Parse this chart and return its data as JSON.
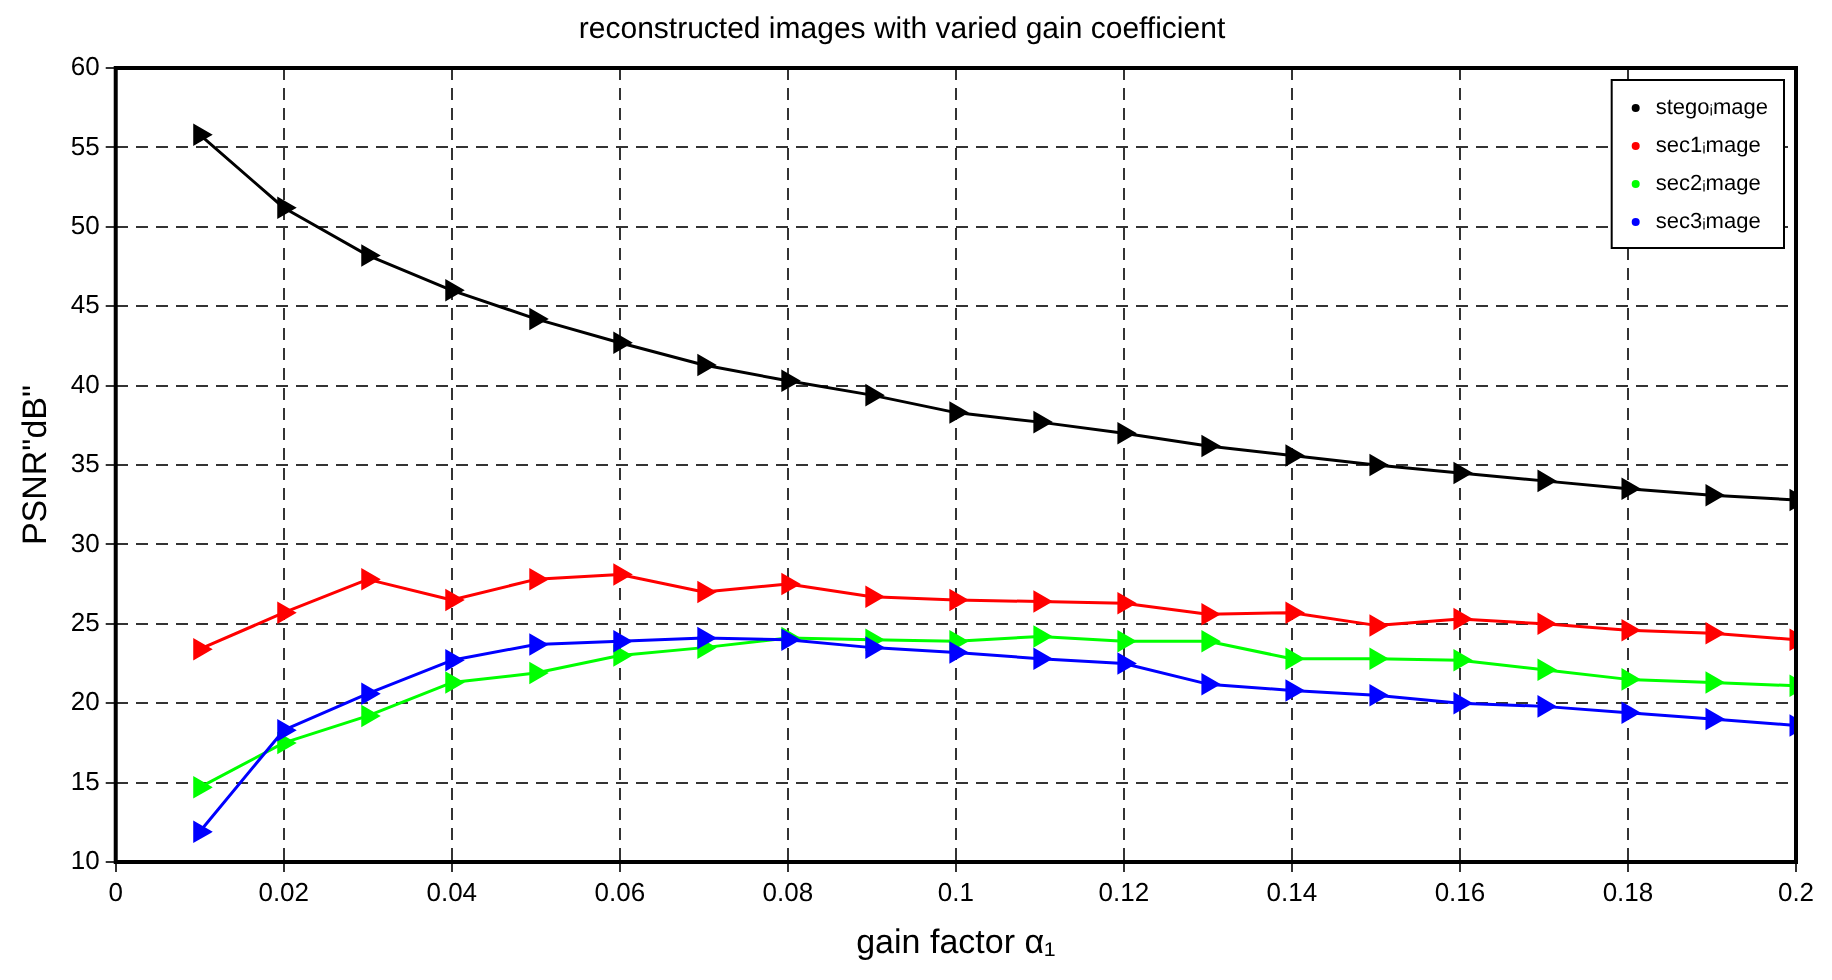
{
  "chart_data": {
    "type": "line",
    "title": "reconstructed images with varied gain coefficient",
    "xlabel": "gain factor α₁",
    "ylabel": "PSNR\"dB\"",
    "x": [
      0.01,
      0.02,
      0.03,
      0.04,
      0.05,
      0.06,
      0.07,
      0.08,
      0.09,
      0.1,
      0.11,
      0.12,
      0.13,
      0.14,
      0.15,
      0.16,
      0.17,
      0.18,
      0.19,
      0.2
    ],
    "series": [
      {
        "name": "stegoᵢmage",
        "color": "#000000",
        "values": [
          55.8,
          51.2,
          48.2,
          46.0,
          44.2,
          42.7,
          41.3,
          40.3,
          39.4,
          38.3,
          37.7,
          37.0,
          36.2,
          35.6,
          35.0,
          34.5,
          34.0,
          33.5,
          33.1,
          32.8
        ]
      },
      {
        "name": "sec1ᵢmage",
        "color": "#ff0000",
        "values": [
          23.4,
          25.7,
          27.8,
          26.5,
          27.8,
          28.1,
          27.0,
          27.5,
          26.7,
          26.5,
          26.4,
          26.3,
          25.6,
          25.7,
          24.9,
          25.3,
          25.0,
          24.6,
          24.4,
          24.0
        ]
      },
      {
        "name": "sec2ᵢmage",
        "color": "#00ff00",
        "values": [
          14.7,
          17.5,
          19.2,
          21.3,
          21.9,
          23.0,
          23.5,
          24.1,
          24.0,
          23.9,
          24.2,
          23.9,
          23.9,
          22.8,
          22.8,
          22.7,
          22.1,
          21.5,
          21.3,
          21.1
        ]
      },
      {
        "name": "sec3ᵢmage",
        "color": "#0000ff",
        "values": [
          11.9,
          18.3,
          20.6,
          22.7,
          23.7,
          23.9,
          24.1,
          24.0,
          23.5,
          23.2,
          22.8,
          22.5,
          21.2,
          20.8,
          20.5,
          20.0,
          19.8,
          19.4,
          19.0,
          18.6
        ]
      }
    ],
    "xlim": [
      0,
      0.2
    ],
    "xticks": [
      0,
      0.02,
      0.04,
      0.06,
      0.08,
      0.1,
      0.12,
      0.14,
      0.16,
      0.18,
      0.2
    ],
    "ylim": [
      10,
      60
    ],
    "yticks": [
      10,
      15,
      20,
      25,
      30,
      35,
      40,
      45,
      50,
      55,
      60
    ],
    "grid": true,
    "legend": "top right",
    "marker": "triangle",
    "line_style": "solid"
  }
}
